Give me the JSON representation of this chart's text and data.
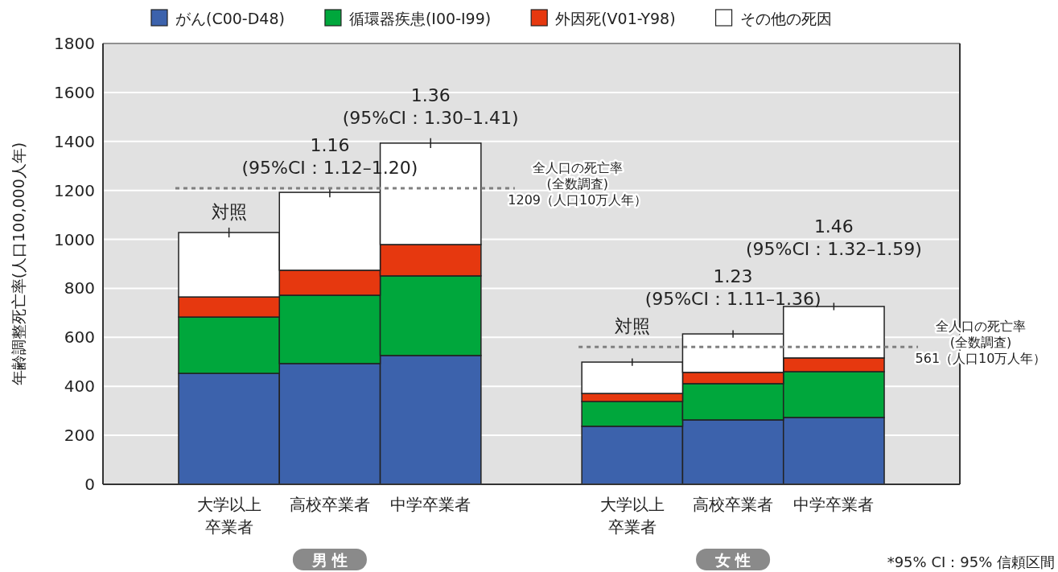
{
  "chart_data": {
    "type": "bar",
    "stacked": true,
    "ylabel": "年齢調整死亡率(人口100,000人年)",
    "categories": [
      "大学以上卒業者",
      "高校卒業者",
      "中学卒業者",
      null,
      "大学以上卒業者",
      "高校卒業者",
      "中学卒業者"
    ],
    "series": [
      {
        "name": "がん(C00-D48)",
        "color": "#3c62ac",
        "values": [
          453,
          493,
          526,
          null,
          237,
          263,
          273
        ]
      },
      {
        "name": "循環器疾患(I00-I99)",
        "color": "#00a73c",
        "values": [
          230,
          279,
          325,
          null,
          101,
          148,
          187
        ]
      },
      {
        "name": "外因死(V01-Y98)",
        "color": "#e6380f",
        "values": [
          82,
          102,
          128,
          null,
          33,
          46,
          56
        ]
      },
      {
        "name": "その他の死因",
        "color": "#ffffff",
        "values": [
          263,
          318,
          414,
          null,
          128,
          157,
          210
        ],
        "errors": [
          20,
          20,
          20,
          null,
          15,
          15,
          15
        ]
      }
    ],
    "ylim": [
      0,
      1800
    ],
    "yticks": [
      0,
      200,
      400,
      600,
      800,
      1000,
      1200,
      1400,
      1600,
      1800
    ],
    "grid": "y",
    "legend": "top",
    "ref_lines": [
      {
        "axis": "y",
        "value": 1209,
        "label": "全人口の死亡率\n(全数調査)\n1209（人口10万人年）",
        "color": "#808080",
        "line_style": "dotted"
      },
      {
        "axis": "y",
        "value": 561,
        "label": "全人口の死亡率\n(全数調査)\n561（人口10万人年）",
        "color": "#808080",
        "line_style": "dotted"
      }
    ],
    "annotations": [
      "対照",
      "1.16\n(95%CI：1.12–1.20)",
      "1.36\n(95%CI：1.30–1.41)",
      "対照",
      "1.23\n(95%CI：1.11–1.36)",
      "1.46\n(95%CI：1.32–1.59)",
      "男 性",
      "女 性",
      "*95% CI：95% 信頼区間"
    ]
  }
}
